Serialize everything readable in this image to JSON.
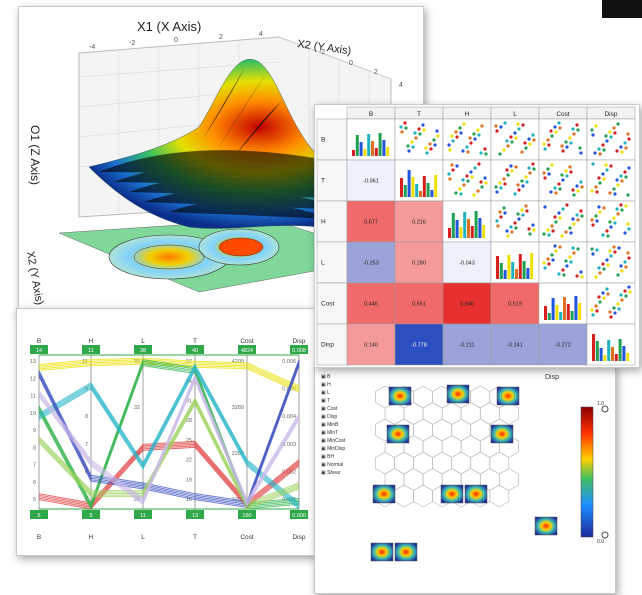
{
  "surface3d": {
    "x1_label": "X1 (X Axis)",
    "x2_label_top": "X2 (Y Axis)",
    "o1_label": "O1 (Z Axis)",
    "x2_label_side": "X2 (Y Axis)"
  },
  "matrix": {
    "headers": [
      "B",
      "T",
      "H",
      "L",
      "Cost",
      "Disp"
    ],
    "rows": [
      "B",
      "T",
      "H",
      "L",
      "Cost",
      "Disp"
    ],
    "correlations": {
      "T": [
        "-0.061"
      ],
      "H": [
        "0.677",
        "0.216"
      ],
      "L": [
        "-0.253",
        "0.280",
        "-0.043"
      ],
      "Cost": [
        "0.446",
        "0.561",
        "0.846",
        "0.519"
      ],
      "Disp": [
        "0.140",
        "-0.778",
        "-0.211",
        "-0.241",
        "-0.272"
      ]
    },
    "colors": {
      "strong_pos": "#e83030",
      "mid_pos": "#f59a9a",
      "weak": "#eef0fb",
      "neg": "#9aa3d8",
      "strong_neg": "#2e4fbf"
    }
  },
  "parallel": {
    "axes": [
      "B",
      "H",
      "L",
      "T",
      "Cost",
      "Disp"
    ],
    "top_values": [
      "14",
      "11",
      "38",
      "40",
      "4824",
      "0.008"
    ],
    "bottom_values": [
      "5",
      "5",
      "11",
      "13",
      "160",
      "0.000"
    ],
    "ticks": {
      "B": [
        "13",
        "12",
        "11",
        "10",
        "9",
        "8",
        "7",
        "6",
        "5"
      ],
      "H": [
        "11",
        "9",
        "8",
        "7",
        "6",
        "5"
      ],
      "L": [
        "35",
        "32",
        "30",
        "28"
      ],
      "T": [
        "37",
        "34",
        "31",
        "28",
        "25",
        "22",
        "19",
        "16"
      ],
      "Cost": [
        "4209",
        "3289",
        "2289",
        "1208"
      ],
      "Disp": [
        "0.006",
        "0.005",
        "0.004",
        "0.003",
        "0.002",
        "0.001"
      ]
    }
  },
  "som": {
    "title": "Disp",
    "list": [
      "B",
      "H",
      "L",
      "T",
      "Cost",
      "Disp",
      "MinB",
      "MinT",
      "MinCost",
      "MinDisp",
      "BH",
      "Normal",
      "Shear"
    ],
    "colorbar_top": "1.0",
    "colorbar_bottom": "0.0"
  }
}
